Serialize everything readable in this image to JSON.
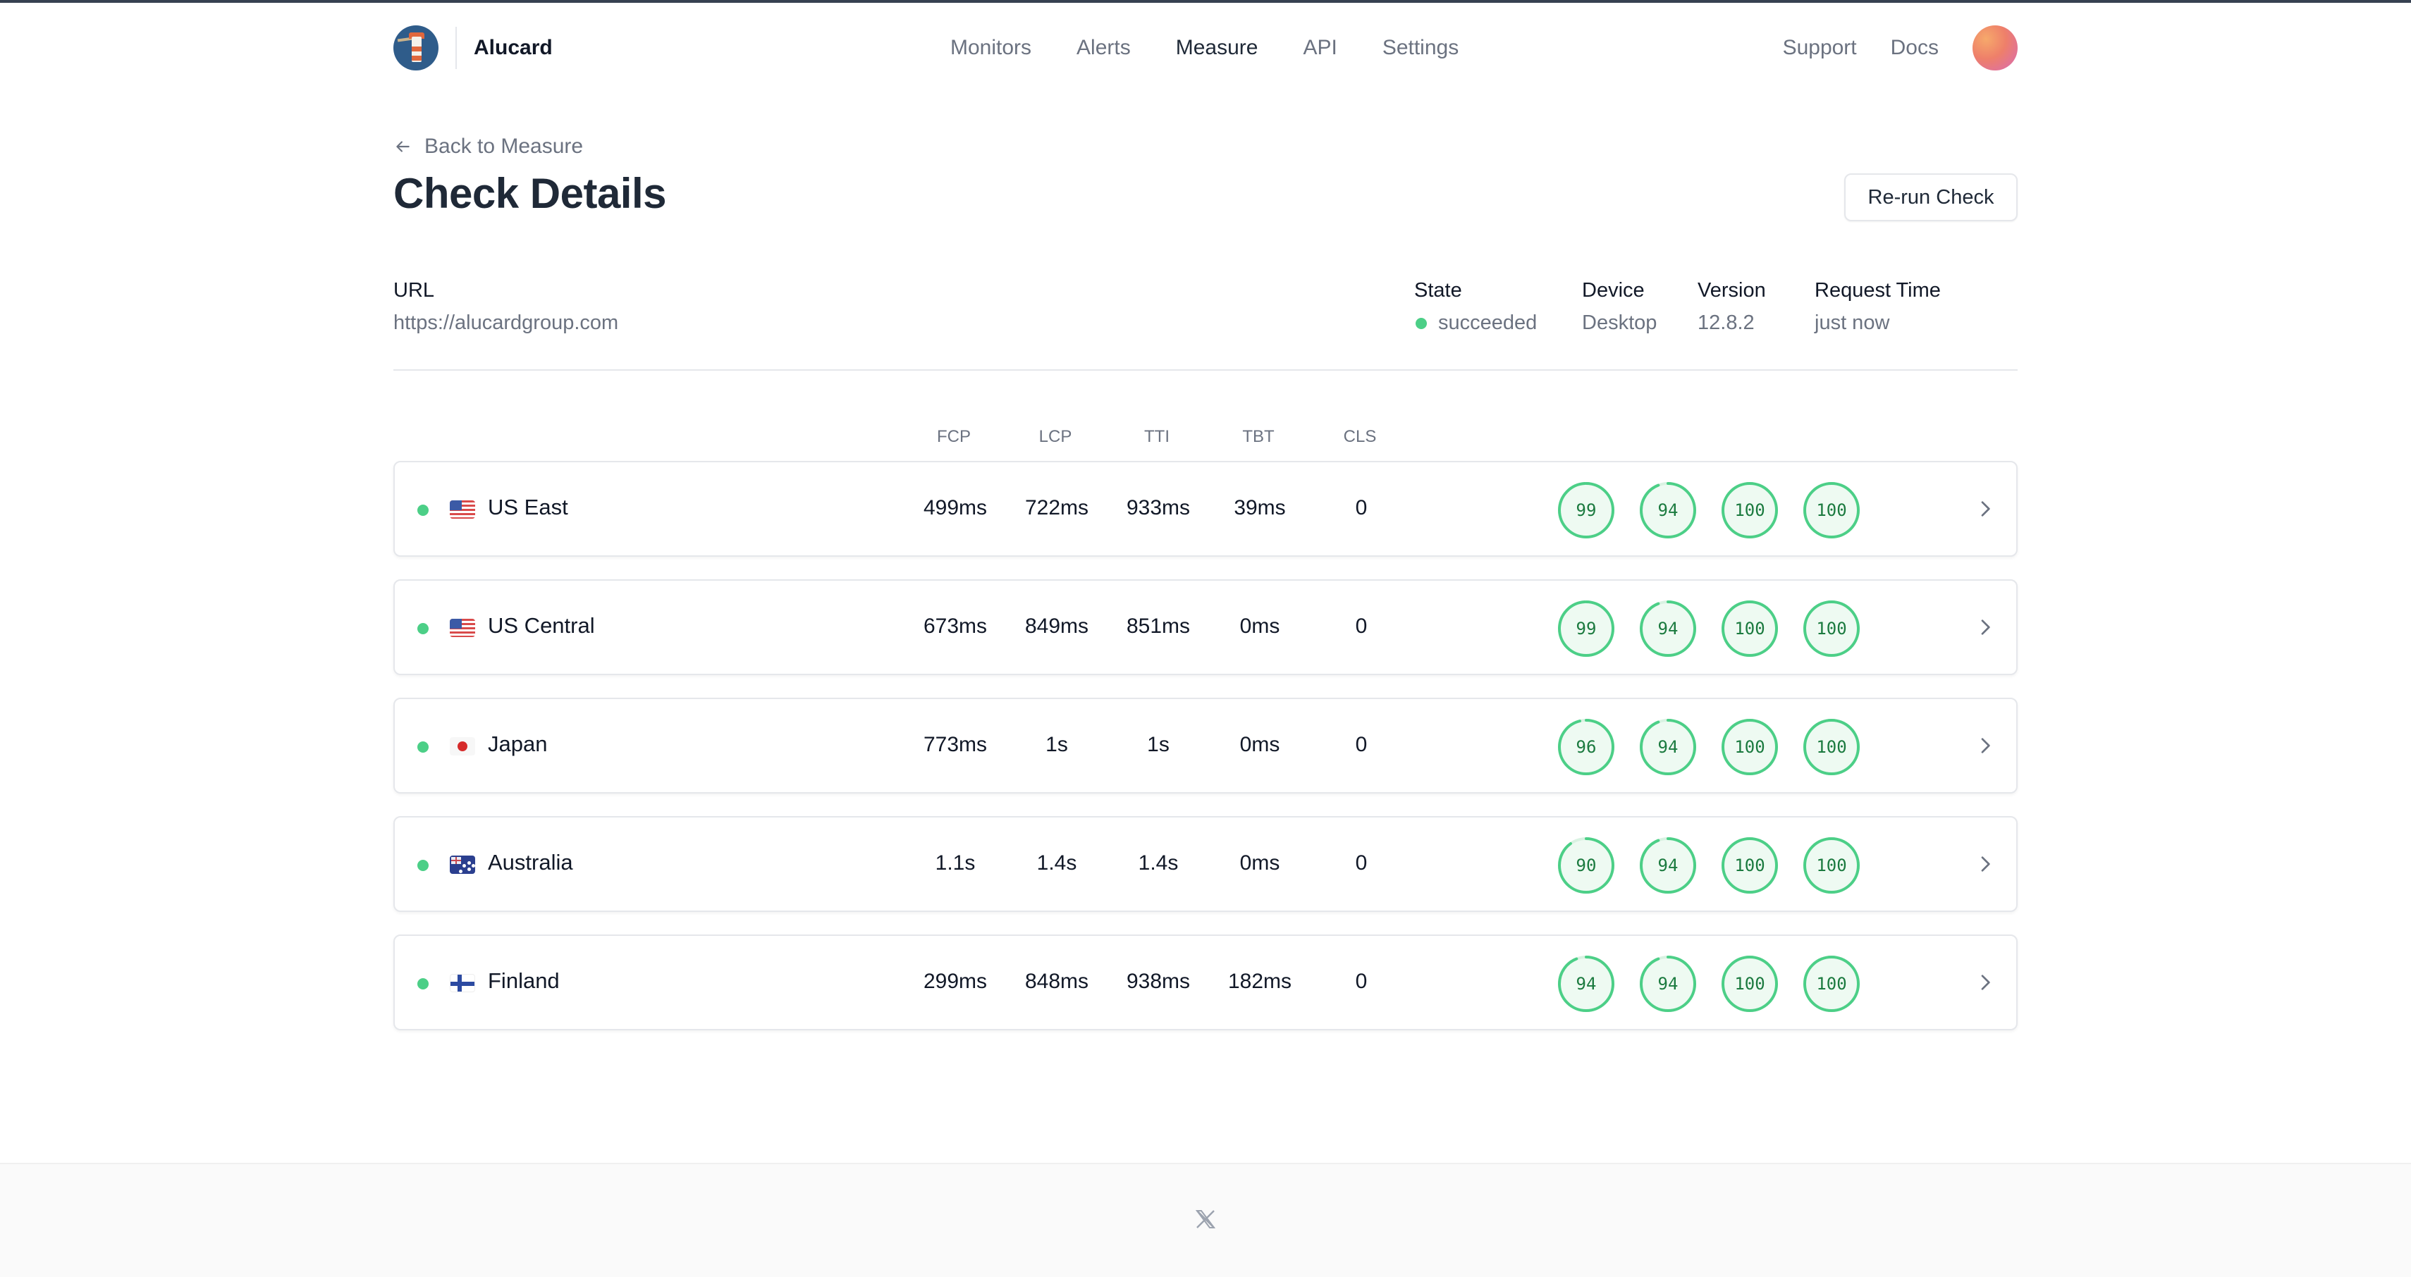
{
  "app": {
    "name": "Alucard"
  },
  "nav": [
    "Monitors",
    "Alerts",
    "Measure",
    "API",
    "Settings"
  ],
  "nav_active": "Measure",
  "header_links": [
    "Support",
    "Docs"
  ],
  "back_link": "Back to Measure",
  "page_title": "Check Details",
  "rerun_button": "Re-run Check",
  "meta": {
    "url_label": "URL",
    "url_value": "https://alucardgroup.com",
    "state_label": "State",
    "state_value": "succeeded",
    "device_label": "Device",
    "device_value": "Desktop",
    "version_label": "Version",
    "version_value": "12.8.2",
    "request_time_label": "Request Time",
    "request_time_value": "just now"
  },
  "columns": [
    "FCP",
    "LCP",
    "TTI",
    "TBT",
    "CLS"
  ],
  "rows": [
    {
      "region": "US East",
      "flag": "us",
      "metrics": [
        "499ms",
        "722ms",
        "933ms",
        "39ms",
        "0"
      ],
      "scores": [
        99,
        94,
        100,
        100
      ]
    },
    {
      "region": "US Central",
      "flag": "us",
      "metrics": [
        "673ms",
        "849ms",
        "851ms",
        "0ms",
        "0"
      ],
      "scores": [
        99,
        94,
        100,
        100
      ]
    },
    {
      "region": "Japan",
      "flag": "jp",
      "metrics": [
        "773ms",
        "1s",
        "1s",
        "0ms",
        "0"
      ],
      "scores": [
        96,
        94,
        100,
        100
      ]
    },
    {
      "region": "Australia",
      "flag": "au",
      "metrics": [
        "1.1s",
        "1.4s",
        "1.4s",
        "0ms",
        "0"
      ],
      "scores": [
        90,
        94,
        100,
        100
      ]
    },
    {
      "region": "Finland",
      "flag": "fi",
      "metrics": [
        "299ms",
        "848ms",
        "938ms",
        "182ms",
        "0"
      ],
      "scores": [
        94,
        94,
        100,
        100
      ]
    }
  ],
  "colors": {
    "status_green": "#4ccf87",
    "score_ring": "#4ccf87",
    "score_fill": "#eefaf2",
    "score_text": "#1b7a3f"
  },
  "icons": {
    "logo": "lighthouse-logo-icon",
    "back": "arrow-left-icon",
    "row_chevron": "chevron-right-icon",
    "footer": "x-logo-icon"
  }
}
